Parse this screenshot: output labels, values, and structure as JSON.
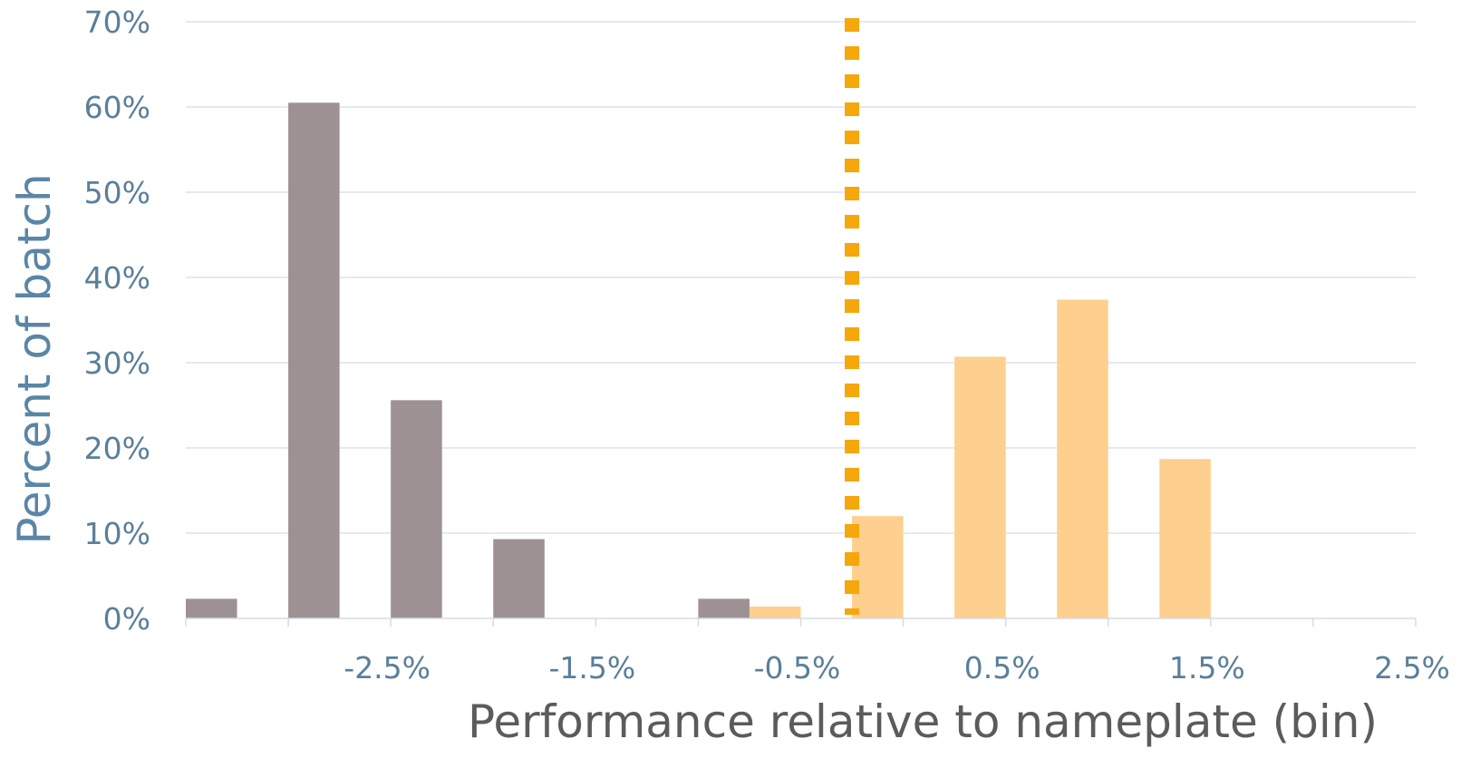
{
  "chart_data": {
    "type": "bar",
    "title": "",
    "xlabel": "Performance relative to nameplate (bin)",
    "ylabel": "Percent of batch",
    "y_ticks": [
      "0%",
      "10%",
      "20%",
      "30%",
      "40%",
      "50%",
      "60%",
      "70%"
    ],
    "ylim": [
      0,
      70
    ],
    "x_tick_labels": [
      "-2.5%",
      "-1.5%",
      "-0.5%",
      "0.5%",
      "1.5%",
      "2.5%"
    ],
    "bins": 12,
    "grid": true,
    "legend": "none",
    "series": [
      {
        "color": "#9d9193",
        "bins": [
          0,
          1,
          2,
          3,
          5
        ],
        "values": [
          2.3,
          60.5,
          25.6,
          9.3,
          2.3
        ]
      },
      {
        "color": "#fdd08f",
        "bins": [
          5,
          6,
          7,
          8,
          9
        ],
        "values": [
          1.4,
          12.0,
          30.7,
          37.4,
          18.7
        ]
      }
    ],
    "reference_line": {
      "style": "dotted",
      "color": "#f5a70b",
      "position": "center of bin 6",
      "y_top": 70
    }
  }
}
